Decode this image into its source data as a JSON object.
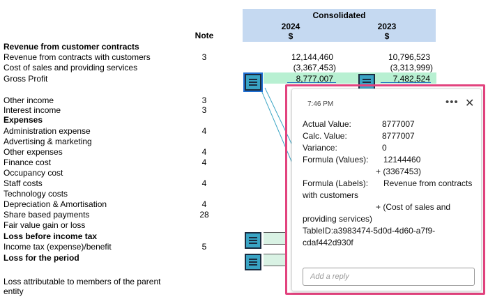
{
  "header": {
    "consolidated": "Consolidated",
    "col_2024": "2024",
    "col_2023": "2023",
    "currency_2024": "$",
    "currency_2023": "$",
    "note": "Note"
  },
  "rows": {
    "rev_section": "Revenue from customer contracts",
    "rev_contracts": {
      "label": "Revenue from contracts with customers",
      "note": "3",
      "v2024": "12,144,460",
      "v2023": "10,796,523"
    },
    "cost_sales": {
      "label": "Cost of sales and providing services",
      "v2024": "(3,367,453)",
      "v2023": "(3,313,999)"
    },
    "gross_profit": {
      "label": "Gross Profit",
      "v2024": "8,777,007",
      "v2023": "7,482,524"
    },
    "other_income": {
      "label": "Other income",
      "note": "3"
    },
    "interest_income": {
      "label": "Interest income",
      "note": "3"
    },
    "expenses": "Expenses",
    "admin": {
      "label": "Administration expense",
      "note": "4"
    },
    "advertising": {
      "label": "Advertising & marketing"
    },
    "other_exp": {
      "label": "Other expenses",
      "note": "4"
    },
    "finance": {
      "label": "Finance cost",
      "note": "4"
    },
    "occupancy": {
      "label": "Occupancy cost"
    },
    "staff": {
      "label": "Staff costs",
      "note": "4"
    },
    "technology": {
      "label": "Technology costs"
    },
    "depreciation": {
      "label": "Depreciation & Amortisation",
      "note": "4"
    },
    "share_based": {
      "label": "Share based payments",
      "note": "28"
    },
    "fair_value": {
      "label": "Fair value gain or loss"
    },
    "loss_before_tax": "Loss before income tax",
    "income_tax": {
      "label": "Income tax (expense)/benefit",
      "note": "5"
    },
    "loss_period": "Loss for the period",
    "attrib_line1": "Loss attributable to members of the parent",
    "attrib_line2": "entity"
  },
  "popup": {
    "time": "7:46 PM",
    "more": "•••",
    "close": "✕",
    "actual_label": "Actual Value:",
    "actual_value": "8777007",
    "calc_label": "Calc. Value:",
    "calc_value": "8777007",
    "variance_label": "Variance:",
    "variance_value": "0",
    "fv_label": "Formula (Values):",
    "fv_line1": "12144460",
    "fv_line2": "+ (3367453)",
    "fl_label": "Formula (Labels):",
    "fl_line1": "Revenue from contracts",
    "fl_line2": "with customers",
    "fl_line3": "+ (Cost of sales and",
    "fl_line4": "providing services)",
    "table_id_1": "TableID:a3983474-5d0d-4d60-a7f9-",
    "table_id_2": "cdaf442d930f",
    "reply_placeholder": "Add a reply"
  },
  "colors": {
    "header_bg": "#c5d9f1",
    "gross_profit_bg": "#b8f0d2",
    "marker_bg": "#39a4c4",
    "popup_highlight": "#e2437e"
  },
  "icons": {
    "marker": "comment-lines-icon",
    "more": "more-horizontal-icon",
    "close": "close-icon"
  }
}
